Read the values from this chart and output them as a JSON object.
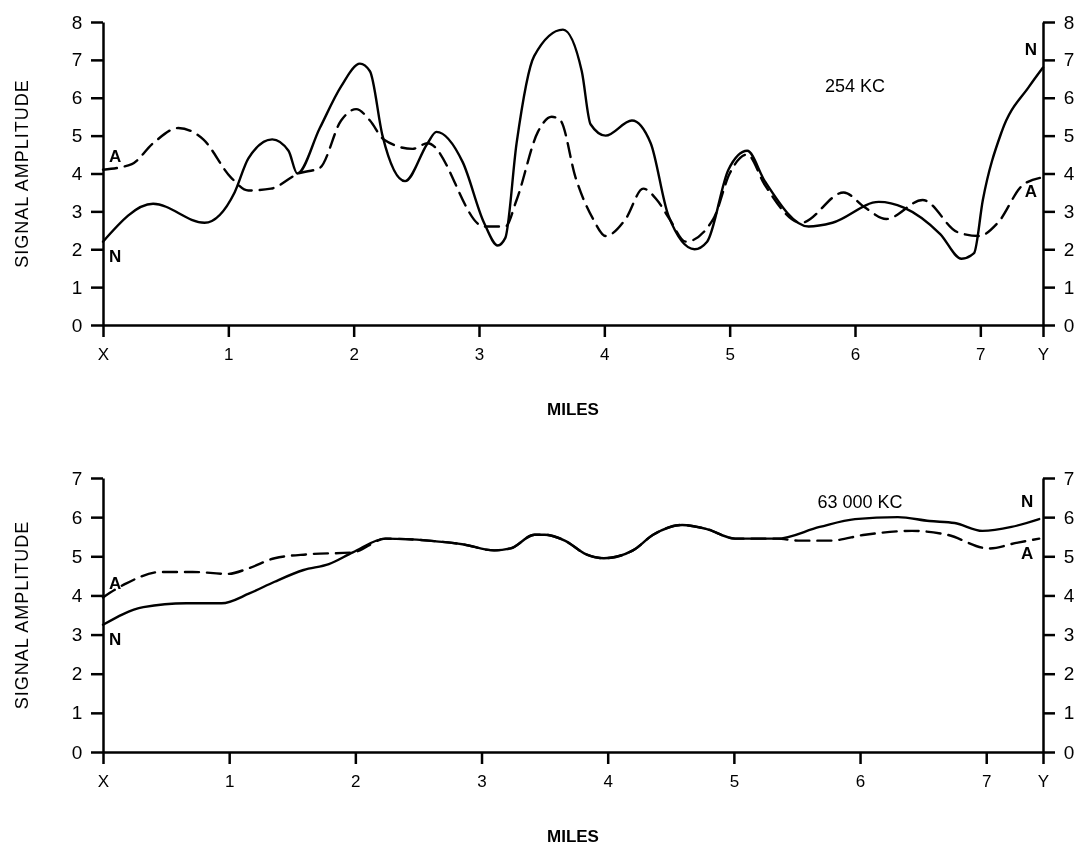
{
  "chart_data": [
    {
      "type": "line",
      "title": "254 KC",
      "xlabel": "MILES",
      "ylabel": "SIGNAL AMPLITUDE",
      "xlim": [
        0,
        7.5
      ],
      "xticks": [
        {
          "value": 0,
          "label": "X"
        },
        1,
        2,
        3,
        4,
        5,
        6,
        7,
        {
          "value": 7.5,
          "label": "Y"
        }
      ],
      "ylim": [
        0,
        8
      ],
      "yticks": [
        0,
        1,
        2,
        3,
        4,
        5,
        6,
        7,
        8
      ],
      "y2lim": [
        0,
        8
      ],
      "y2ticks": [
        0,
        1,
        2,
        3,
        4,
        5,
        6,
        7,
        8
      ],
      "grid": false,
      "marker": "none",
      "series": [
        {
          "name": "N",
          "color": "#000000",
          "line_style": "solid",
          "x": [
            0,
            0.4,
            0.81,
            1.05,
            1.16,
            1.35,
            1.48,
            1.55,
            1.73,
            1.9,
            2.05,
            2.13,
            2.23,
            2.41,
            2.59,
            2.66,
            2.87,
            3.04,
            3.15,
            3.21,
            3.3,
            3.44,
            3.67,
            3.82,
            3.89,
            4.01,
            4.22,
            4.37,
            4.51,
            4.72,
            4.82,
            4.99,
            5.14,
            5.28,
            5.63,
            5.82,
            6.19,
            6.39,
            6.68,
            6.85,
            6.95,
            7.02,
            7.17,
            7.39,
            7.5
          ],
          "values": [
            2.2,
            3.2,
            2.7,
            3.5,
            4.4,
            4.9,
            4.6,
            4.0,
            5.2,
            6.3,
            6.9,
            6.7,
            5.0,
            3.8,
            4.8,
            5.1,
            4.3,
            2.7,
            2.1,
            2.3,
            4.8,
            7.1,
            7.8,
            6.7,
            5.3,
            5.0,
            5.4,
            4.8,
            2.9,
            2.0,
            2.2,
            4.1,
            4.6,
            3.8,
            2.6,
            2.7,
            3.25,
            3.1,
            2.4,
            1.75,
            1.9,
            3.3,
            5.1,
            6.3,
            6.8
          ]
        },
        {
          "name": "A",
          "color": "#000000",
          "line_style": "dashed",
          "x": [
            0,
            0.23,
            0.4,
            0.6,
            0.8,
            1.02,
            1.16,
            1.34,
            1.56,
            1.73,
            1.9,
            2.02,
            2.13,
            2.24,
            2.47,
            2.59,
            3.04,
            3.21,
            3.3,
            3.47,
            3.58,
            3.65,
            3.77,
            3.91,
            4.01,
            4.17,
            4.31,
            4.42,
            4.52,
            4.65,
            4.87,
            5.0,
            5.14,
            5.28,
            5.57,
            5.91,
            6.08,
            6.25,
            6.54,
            6.82,
            6.99,
            7.14,
            7.34,
            7.5
          ],
          "values": [
            4.1,
            4.25,
            4.8,
            5.2,
            4.9,
            3.9,
            3.55,
            3.6,
            4.0,
            4.15,
            5.4,
            5.7,
            5.4,
            4.9,
            4.65,
            4.8,
            2.6,
            2.6,
            3.3,
            5.1,
            5.5,
            5.4,
            3.9,
            2.8,
            2.35,
            2.8,
            3.6,
            3.3,
            2.8,
            2.2,
            2.8,
            4.0,
            4.5,
            3.7,
            2.7,
            3.5,
            3.1,
            2.8,
            3.3,
            2.45,
            2.35,
            2.7,
            3.7,
            3.9
          ]
        }
      ]
    },
    {
      "type": "line",
      "title": "63 000 KC",
      "xlabel": "MILES",
      "ylabel": "SIGNAL AMPLITUDE",
      "xlim": [
        0,
        7.45
      ],
      "xticks": [
        {
          "value": 0,
          "label": "X"
        },
        1,
        2,
        3,
        4,
        5,
        6,
        7,
        {
          "value": 7.45,
          "label": "Y"
        }
      ],
      "ylim": [
        0,
        7
      ],
      "yticks": [
        0,
        1,
        2,
        3,
        4,
        5,
        6,
        7
      ],
      "y2lim": [
        0,
        7
      ],
      "y2ticks": [
        0,
        1,
        2,
        3,
        4,
        5,
        6,
        7
      ],
      "grid": false,
      "marker": "none",
      "series": [
        {
          "name": "N",
          "color": "#000000",
          "line_style": "solid",
          "x": [
            0,
            0.32,
            0.66,
            0.94,
            1.16,
            1.36,
            1.59,
            1.79,
            1.98,
            2.24,
            2.58,
            2.86,
            3.1,
            3.23,
            3.42,
            3.5,
            3.66,
            3.83,
            3.97,
            4.2,
            4.36,
            4.59,
            4.78,
            5.01,
            5.34,
            5.68,
            5.96,
            6.3,
            6.55,
            6.75,
            6.97,
            7.2,
            7.42
          ],
          "values": [
            3.25,
            3.7,
            3.8,
            3.8,
            4.05,
            4.35,
            4.65,
            4.8,
            5.1,
            5.45,
            5.4,
            5.3,
            5.15,
            5.2,
            5.55,
            5.55,
            5.4,
            5.05,
            4.95,
            5.15,
            5.55,
            5.8,
            5.7,
            5.45,
            5.45,
            5.75,
            5.95,
            6.0,
            5.9,
            5.85,
            5.65,
            5.75,
            5.95
          ]
        },
        {
          "name": "A",
          "color": "#000000",
          "line_style": "dashed",
          "x": [
            0,
            0.18,
            0.46,
            0.71,
            0.99,
            1.16,
            1.36,
            1.62,
            1.98,
            2.24,
            2.58,
            2.86,
            3.1,
            3.23,
            3.42,
            3.5,
            3.66,
            3.83,
            3.97,
            4.2,
            4.36,
            4.59,
            4.78,
            5.01,
            5.34,
            5.51,
            5.76,
            6.04,
            6.41,
            6.69,
            7.02,
            7.25,
            7.42
          ],
          "values": [
            3.95,
            4.3,
            4.6,
            4.6,
            4.55,
            4.7,
            4.95,
            5.05,
            5.1,
            5.45,
            5.4,
            5.3,
            5.15,
            5.2,
            5.55,
            5.55,
            5.4,
            5.05,
            4.95,
            5.15,
            5.55,
            5.8,
            5.7,
            5.45,
            5.45,
            5.4,
            5.4,
            5.55,
            5.65,
            5.55,
            5.2,
            5.35,
            5.45
          ]
        }
      ]
    }
  ]
}
